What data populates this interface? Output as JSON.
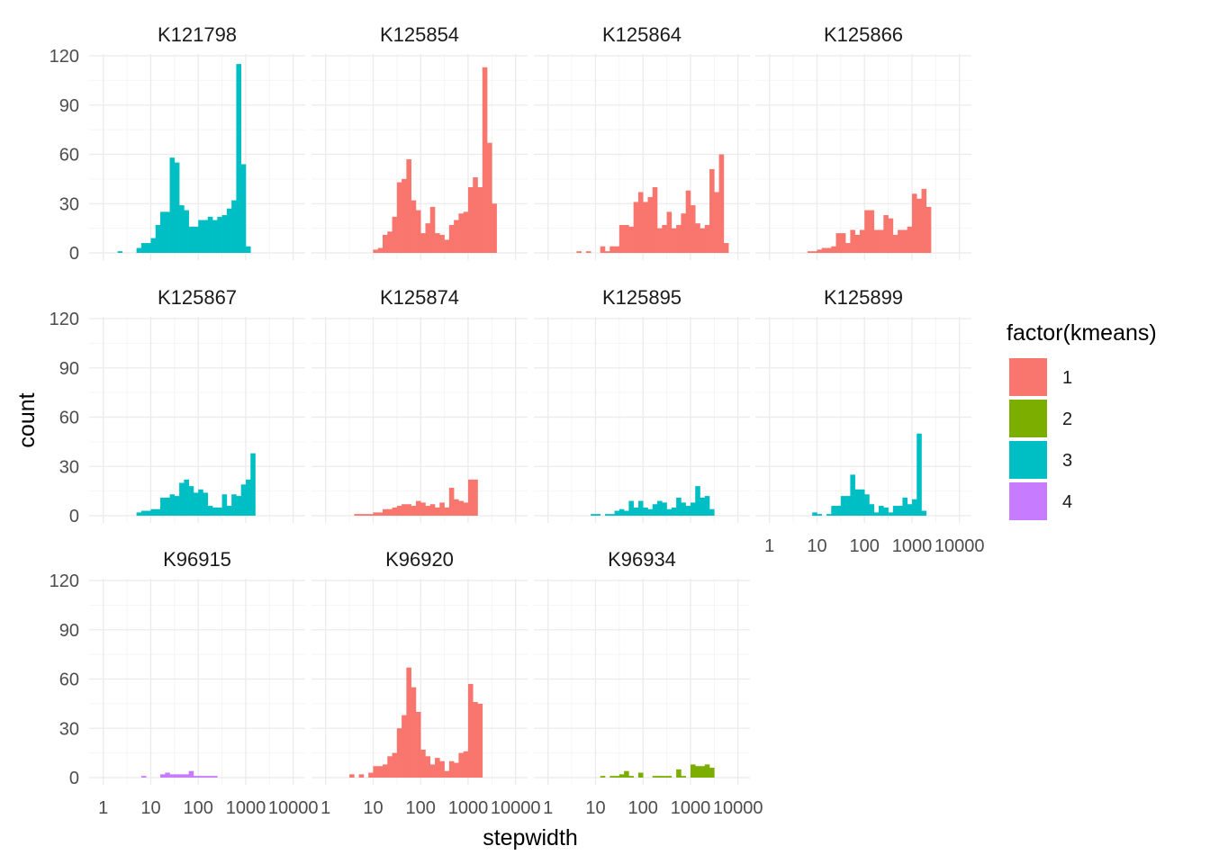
{
  "chart_data": {
    "type": "bar",
    "subtype": "faceted-histogram",
    "xlabel": "stepwidth",
    "ylabel": "count",
    "x_scale": "log10",
    "x_breaks": [
      1,
      10,
      100,
      1000,
      10000
    ],
    "x_break_labels": [
      "1",
      "10",
      "100",
      "1000",
      "10000"
    ],
    "xlim": [
      0.6,
      15000
    ],
    "y_breaks": [
      0,
      30,
      60,
      90,
      120
    ],
    "y_break_labels": [
      "0",
      "30",
      "60",
      "90",
      "120"
    ],
    "ylim": [
      0,
      120
    ],
    "bins_log10_start": 0.3,
    "bins_log10_step": 0.1,
    "grid": true,
    "theme": "minimal",
    "legend": {
      "title": "factor(kmeans)",
      "position": "right",
      "items": [
        {
          "label": "1",
          "color": "#F8766D"
        },
        {
          "label": "2",
          "color": "#7CAE00"
        },
        {
          "label": "3",
          "color": "#00BFC4"
        },
        {
          "label": "4",
          "color": "#C77CFF"
        }
      ]
    },
    "facets": [
      {
        "name": "K121798",
        "cluster": "3",
        "counts": [
          1,
          0,
          0,
          0,
          3,
          6,
          6,
          9,
          17,
          25,
          25,
          58,
          55,
          29,
          26,
          16,
          16,
          20,
          20,
          22,
          20,
          22,
          23,
          27,
          32,
          115,
          54,
          4
        ]
      },
      {
        "name": "K125854",
        "cluster": "1",
        "counts": [
          0,
          0,
          0,
          0,
          0,
          0,
          0,
          2,
          3,
          11,
          13,
          22,
          43,
          45,
          57,
          32,
          26,
          12,
          18,
          28,
          12,
          11,
          8,
          17,
          20,
          24,
          25,
          40,
          46,
          40,
          113,
          67,
          30
        ]
      },
      {
        "name": "K125864",
        "cluster": "1",
        "counts": [
          0,
          0,
          0,
          1,
          0,
          1,
          0,
          0,
          4,
          1,
          4,
          4,
          17,
          17,
          16,
          31,
          37,
          31,
          34,
          40,
          15,
          17,
          25,
          15,
          17,
          24,
          38,
          29,
          18,
          15,
          17,
          51,
          37,
          60,
          6
        ]
      },
      {
        "name": "K125866",
        "cluster": "1",
        "counts": [
          0,
          0,
          0,
          0,
          0,
          1,
          1,
          2,
          3,
          3,
          4,
          12,
          12,
          6,
          14,
          11,
          14,
          26,
          26,
          14,
          14,
          23,
          21,
          11,
          14,
          14,
          16,
          36,
          33,
          39,
          28
        ]
      },
      {
        "name": "K125867",
        "cluster": "3",
        "counts": [
          0,
          0,
          0,
          0,
          2,
          3,
          3,
          4,
          4,
          11,
          11,
          13,
          12,
          20,
          22,
          18,
          14,
          16,
          14,
          6,
          5,
          5,
          13,
          6,
          13,
          12,
          19,
          22,
          38
        ]
      },
      {
        "name": "K125874",
        "cluster": "1",
        "counts": [
          0,
          0,
          0,
          1,
          1,
          1,
          1,
          2,
          2,
          4,
          4,
          5,
          6,
          7,
          7,
          6,
          9,
          8,
          6,
          7,
          5,
          8,
          5,
          17,
          10,
          9,
          8,
          22,
          22
        ]
      },
      {
        "name": "K125895",
        "cluster": "3",
        "counts": [
          0,
          0,
          0,
          0,
          0,
          0,
          1,
          1,
          0,
          1,
          1,
          3,
          4,
          3,
          9,
          5,
          9,
          5,
          4,
          7,
          9,
          8,
          4,
          5,
          11,
          8,
          6,
          8,
          18,
          11,
          12,
          4
        ]
      },
      {
        "name": "K125899",
        "cluster": "3",
        "counts": [
          0,
          0,
          0,
          0,
          0,
          0,
          2,
          1,
          0,
          1,
          6,
          6,
          12,
          12,
          25,
          16,
          16,
          13,
          7,
          2,
          6,
          5,
          2,
          6,
          6,
          11,
          7,
          10,
          50,
          3
        ]
      },
      {
        "name": "K96915",
        "cluster": "4",
        "counts": [
          0,
          0,
          0,
          0,
          0,
          1,
          0,
          0,
          0,
          2,
          3,
          2,
          2,
          2,
          2,
          4,
          1,
          1,
          1,
          1,
          1
        ]
      },
      {
        "name": "K96920",
        "cluster": "1",
        "counts": [
          0,
          0,
          2,
          0,
          2,
          0,
          3,
          7,
          7,
          8,
          13,
          15,
          30,
          38,
          67,
          55,
          40,
          17,
          13,
          8,
          12,
          10,
          4,
          10,
          9,
          15,
          16,
          57,
          46,
          45
        ]
      },
      {
        "name": "K96934",
        "cluster": "2",
        "counts": [
          0,
          0,
          0,
          0,
          0,
          0,
          0,
          0,
          1,
          0,
          1,
          1,
          2,
          4,
          1,
          0,
          3,
          0,
          0,
          1,
          1,
          1,
          1,
          0,
          5,
          1,
          0,
          8,
          7,
          7,
          8,
          6
        ]
      }
    ]
  }
}
